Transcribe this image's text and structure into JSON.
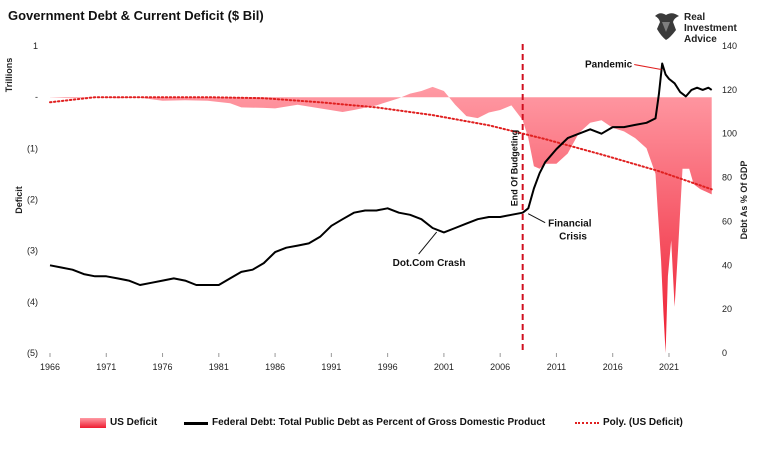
{
  "title": "Government Debt & Current Deficit ($ Bil)",
  "logo": {
    "line1": "Real",
    "line2": "Investment",
    "line3": "Advice",
    "icon": "bull-icon"
  },
  "legend": [
    {
      "label": "US Deficit",
      "color": "#f04050"
    },
    {
      "label": "Federal Debt: Total Public Debt as Percent of Gross Domestic Product",
      "color": "#000000"
    },
    {
      "label": "Poly. (US Deficit)",
      "color": "#e02020"
    }
  ],
  "chart_data": {
    "type": "area",
    "title": "Government Debt & Current Deficit ($ Bil)",
    "xlabel": "",
    "x_ticks": [
      "1966",
      "1971",
      "1976",
      "1981",
      "1986",
      "1991",
      "1996",
      "2001",
      "2006",
      "2011",
      "2016",
      "2021"
    ],
    "xlim": [
      1966,
      2025
    ],
    "left_axis": {
      "label": "Deficit",
      "unit_label": "Trillions",
      "ylim": [
        -5,
        1
      ],
      "ticks": [
        1,
        0,
        -1,
        -2,
        -3,
        -4,
        -5
      ],
      "tick_labels": [
        "1",
        "-",
        "(1)",
        "(2)",
        "(3)",
        "(4)",
        "(5)"
      ]
    },
    "right_axis": {
      "label": "Debt As % Of GDP",
      "ylim": [
        0,
        140
      ],
      "ticks": [
        0,
        20,
        40,
        60,
        80,
        100,
        120,
        140
      ],
      "tick_labels": [
        "0",
        "20",
        "40",
        "60",
        "80",
        "100",
        "120",
        "140"
      ]
    },
    "grid": false,
    "legend_position": "bottom",
    "series": [
      {
        "name": "US Deficit",
        "axis": "left",
        "color": "#f04050",
        "style": "area",
        "points": [
          [
            1966,
            -0.005
          ],
          [
            1968,
            -0.02
          ],
          [
            1970,
            -0.005
          ],
          [
            1972,
            -0.02
          ],
          [
            1974,
            -0.01
          ],
          [
            1976,
            -0.07
          ],
          [
            1978,
            -0.06
          ],
          [
            1980,
            -0.07
          ],
          [
            1982,
            -0.12
          ],
          [
            1983,
            -0.2
          ],
          [
            1985,
            -0.21
          ],
          [
            1986,
            -0.22
          ],
          [
            1988,
            -0.15
          ],
          [
            1990,
            -0.22
          ],
          [
            1992,
            -0.29
          ],
          [
            1993,
            -0.25
          ],
          [
            1995,
            -0.16
          ],
          [
            1997,
            -0.02
          ],
          [
            1998,
            0.07
          ],
          [
            1999,
            0.12
          ],
          [
            2000,
            0.2
          ],
          [
            2001,
            0.12
          ],
          [
            2002,
            -0.15
          ],
          [
            2003,
            -0.37
          ],
          [
            2004,
            -0.41
          ],
          [
            2005,
            -0.3
          ],
          [
            2006,
            -0.25
          ],
          [
            2007,
            -0.16
          ],
          [
            2008,
            -0.45
          ],
          [
            2008.5,
            -0.8
          ],
          [
            2009,
            -1.35
          ],
          [
            2009.5,
            -1.4
          ],
          [
            2010,
            -1.3
          ],
          [
            2011,
            -1.3
          ],
          [
            2012,
            -1.1
          ],
          [
            2013,
            -0.7
          ],
          [
            2014,
            -0.5
          ],
          [
            2015,
            -0.45
          ],
          [
            2016,
            -0.6
          ],
          [
            2017,
            -0.67
          ],
          [
            2018,
            -0.8
          ],
          [
            2019,
            -1.0
          ],
          [
            2019.8,
            -1.5
          ],
          [
            2020,
            -2.2
          ],
          [
            2020.3,
            -3.2
          ],
          [
            2020.5,
            -4.2
          ],
          [
            2020.7,
            -5.0
          ],
          [
            2020.9,
            -3.5
          ],
          [
            2021.2,
            -2.8
          ],
          [
            2021.5,
            -4.1
          ],
          [
            2021.8,
            -3.0
          ],
          [
            2022.2,
            -1.4
          ],
          [
            2022.8,
            -1.4
          ],
          [
            2023.2,
            -1.7
          ],
          [
            2023.8,
            -1.8
          ],
          [
            2024.3,
            -1.85
          ],
          [
            2024.8,
            -1.9
          ]
        ]
      },
      {
        "name": "Federal Debt: Total Public Debt as Percent of Gross Domestic Product",
        "axis": "right",
        "color": "#000000",
        "style": "line",
        "points": [
          [
            1966,
            40
          ],
          [
            1967,
            39
          ],
          [
            1968,
            38
          ],
          [
            1969,
            36
          ],
          [
            1970,
            35
          ],
          [
            1971,
            35
          ],
          [
            1972,
            34
          ],
          [
            1973,
            33
          ],
          [
            1974,
            31
          ],
          [
            1975,
            32
          ],
          [
            1976,
            33
          ],
          [
            1977,
            34
          ],
          [
            1978,
            33
          ],
          [
            1979,
            31
          ],
          [
            1980,
            31
          ],
          [
            1981,
            31
          ],
          [
            1982,
            34
          ],
          [
            1983,
            37
          ],
          [
            1984,
            38
          ],
          [
            1985,
            41
          ],
          [
            1986,
            46
          ],
          [
            1987,
            48
          ],
          [
            1988,
            49
          ],
          [
            1989,
            50
          ],
          [
            1990,
            53
          ],
          [
            1991,
            58
          ],
          [
            1992,
            61
          ],
          [
            1993,
            64
          ],
          [
            1994,
            65
          ],
          [
            1995,
            65
          ],
          [
            1996,
            66
          ],
          [
            1997,
            64
          ],
          [
            1998,
            63
          ],
          [
            1999,
            61
          ],
          [
            2000,
            57
          ],
          [
            2001,
            55
          ],
          [
            2002,
            57
          ],
          [
            2003,
            59
          ],
          [
            2004,
            61
          ],
          [
            2005,
            62
          ],
          [
            2006,
            62
          ],
          [
            2007,
            63
          ],
          [
            2008,
            64
          ],
          [
            2008.5,
            66
          ],
          [
            2009,
            75
          ],
          [
            2009.5,
            82
          ],
          [
            2010,
            87
          ],
          [
            2011,
            93
          ],
          [
            2012,
            98
          ],
          [
            2013,
            100
          ],
          [
            2014,
            102
          ],
          [
            2015,
            100
          ],
          [
            2016,
            103
          ],
          [
            2017,
            103
          ],
          [
            2018,
            104
          ],
          [
            2019,
            105
          ],
          [
            2019.8,
            107
          ],
          [
            2020.1,
            118
          ],
          [
            2020.4,
            132
          ],
          [
            2020.7,
            127
          ],
          [
            2021,
            125
          ],
          [
            2021.5,
            123
          ],
          [
            2022,
            119
          ],
          [
            2022.5,
            117
          ],
          [
            2023,
            120
          ],
          [
            2023.5,
            121
          ],
          [
            2024,
            120
          ],
          [
            2024.5,
            121
          ],
          [
            2024.8,
            120
          ]
        ]
      },
      {
        "name": "Poly. (US Deficit)",
        "axis": "left",
        "color": "#e02020",
        "style": "dotted",
        "points": [
          [
            1966,
            -0.1
          ],
          [
            1970,
            0.0
          ],
          [
            1975,
            0.0
          ],
          [
            1980,
            0.0
          ],
          [
            1985,
            -0.02
          ],
          [
            1990,
            -0.1
          ],
          [
            1995,
            -0.2
          ],
          [
            2000,
            -0.35
          ],
          [
            2005,
            -0.55
          ],
          [
            2010,
            -0.82
          ],
          [
            2015,
            -1.12
          ],
          [
            2020,
            -1.44
          ],
          [
            2024.8,
            -1.8
          ]
        ]
      }
    ],
    "annotations": [
      {
        "text": "Pandemic",
        "x": 2020.4,
        "y": 132,
        "axis": "right"
      },
      {
        "text": "Dot.Com Crash",
        "x": 2000,
        "y": 57,
        "axis": "right"
      },
      {
        "text": "Financial",
        "text2": "Crisis",
        "x": 2008.4,
        "y": 64,
        "axis": "right"
      },
      {
        "text": "End Of Budgeting",
        "x": 2008,
        "type": "vline",
        "color": "#d01020"
      }
    ]
  }
}
